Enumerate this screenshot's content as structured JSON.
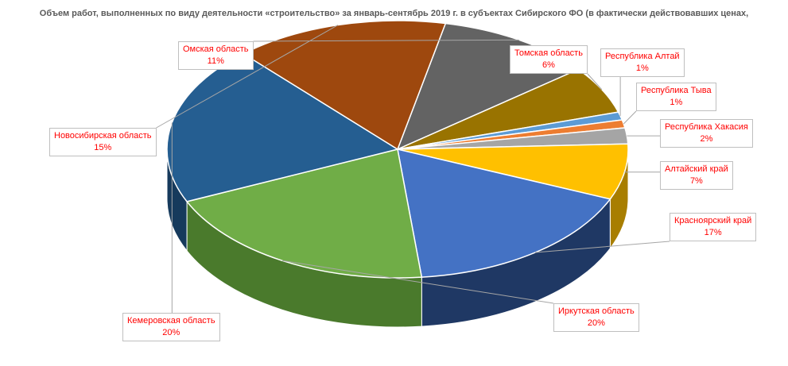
{
  "chart_data": {
    "type": "pie",
    "title": "Объем работ, выполненных по виду деятельности «строительство» за январь-сентябрь 2019 г. в субъектах Сибирского ФО (в фактически действовавших ценах, млн. рублей)",
    "slices": [
      {
        "label": "Омская область",
        "percent_label": "11%",
        "value": 11,
        "color": "#636363",
        "dark": "#3e3e3e"
      },
      {
        "label": "Томская область",
        "percent_label": "6%",
        "value": 6,
        "color": "#997300",
        "dark": "#614800"
      },
      {
        "label": "Республика Алтай",
        "percent_label": "1%",
        "value": 1,
        "color": "#5b9bd5",
        "dark": "#3a6a96"
      },
      {
        "label": "Республика Тыва",
        "percent_label": "1%",
        "value": 1,
        "color": "#ed7d31",
        "dark": "#a9561e"
      },
      {
        "label": "Республика Хакасия",
        "percent_label": "2%",
        "value": 2,
        "color": "#a5a5a5",
        "dark": "#6e6e6e"
      },
      {
        "label": "Алтайский край",
        "percent_label": "7%",
        "value": 7,
        "color": "#ffc000",
        "dark": "#a87e00"
      },
      {
        "label": "Красноярский край",
        "percent_label": "17%",
        "value": 17,
        "color": "#4472c4",
        "dark": "#1f3864"
      },
      {
        "label": "Иркутская область",
        "percent_label": "20%",
        "value": 20,
        "color": "#70ad47",
        "dark": "#4a7a2c"
      },
      {
        "label": "Кемеровская область",
        "percent_label": "20%",
        "value": 20,
        "color": "#255e91",
        "dark": "#163a5c"
      },
      {
        "label": "Новосибирская область",
        "percent_label": "15%",
        "value": 15,
        "color": "#9e480e",
        "dark": "#6a2f08"
      }
    ]
  }
}
